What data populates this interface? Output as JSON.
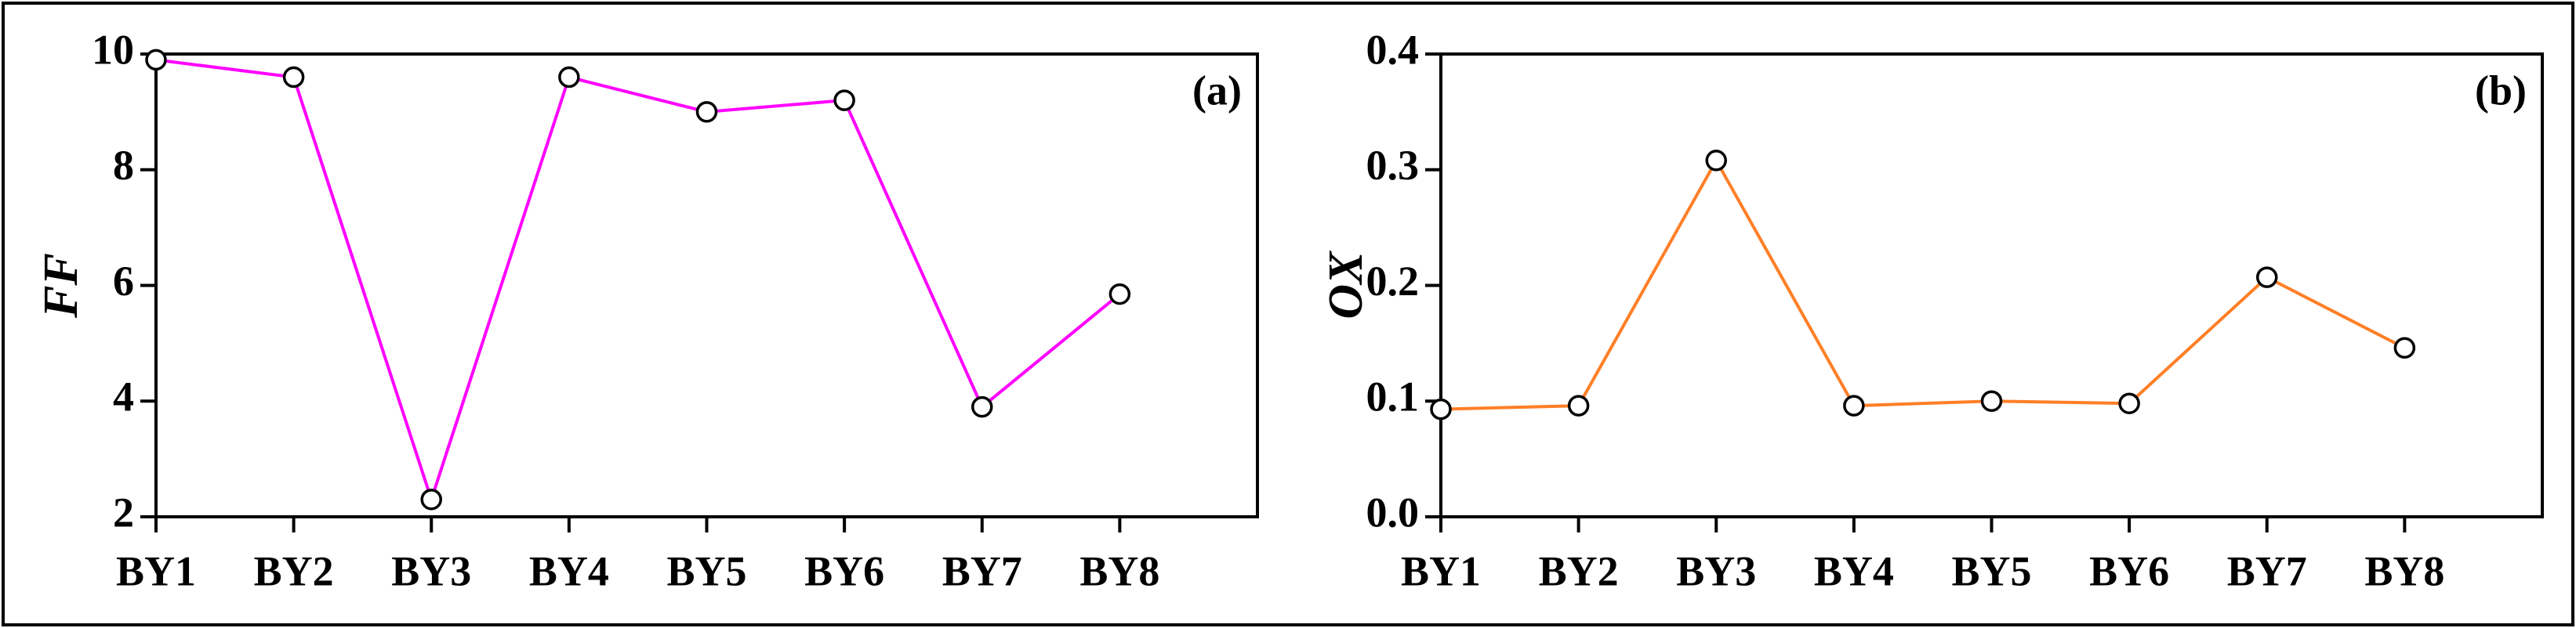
{
  "chart_data": [
    {
      "type": "line",
      "ylabel": "FF",
      "annotation": "(a)",
      "categories": [
        "BY1",
        "BY2",
        "BY3",
        "BY4",
        "BY5",
        "BY6",
        "BY7",
        "BY8"
      ],
      "values": [
        9.9,
        9.6,
        2.3,
        9.6,
        9.0,
        9.2,
        3.9,
        5.85
      ],
      "color": "#ff00ff",
      "ylim": [
        2,
        10
      ],
      "yticks": [
        2,
        4,
        6,
        8,
        10
      ]
    },
    {
      "type": "line",
      "ylabel": "OX",
      "annotation": "(b)",
      "categories": [
        "BY1",
        "BY2",
        "BY3",
        "BY4",
        "BY5",
        "BY6",
        "BY7",
        "BY8"
      ],
      "values": [
        0.093,
        0.096,
        0.308,
        0.096,
        0.1,
        0.098,
        0.207,
        0.146
      ],
      "color": "#ff7f27",
      "ylim": [
        0,
        0.4
      ],
      "yticks": [
        {
          "value": 0,
          "label": "0.0"
        },
        0.1,
        0.2,
        0.3,
        0.4
      ]
    }
  ]
}
